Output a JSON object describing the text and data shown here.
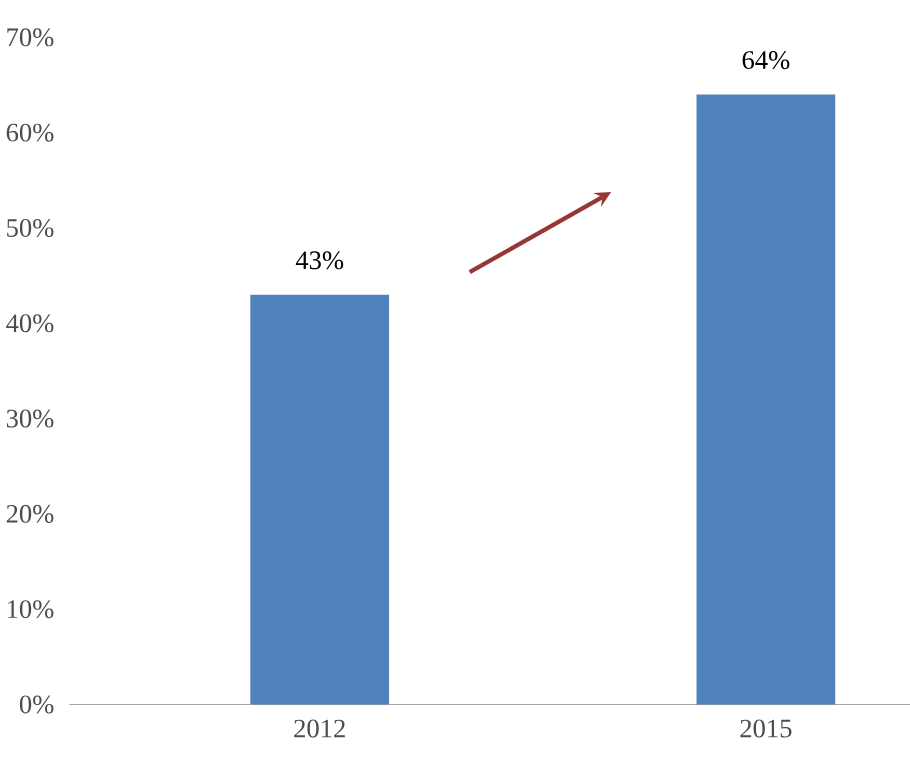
{
  "chart_data": {
    "type": "bar",
    "categories": [
      "2012",
      "2015"
    ],
    "values": [
      43,
      64
    ],
    "color": "#4f81bd",
    "value_labels": [
      "43%",
      "64%"
    ],
    "ylim": [
      0,
      70
    ],
    "yticks": [
      {
        "value": 0,
        "label": "0%"
      },
      {
        "value": 10,
        "label": "10%"
      },
      {
        "value": 20,
        "label": "20%"
      },
      {
        "value": 30,
        "label": "30%"
      },
      {
        "value": 40,
        "label": "40%"
      },
      {
        "value": 50,
        "label": "50%"
      },
      {
        "value": 60,
        "label": "60%"
      },
      {
        "value": 70,
        "label": "70%"
      }
    ]
  }
}
